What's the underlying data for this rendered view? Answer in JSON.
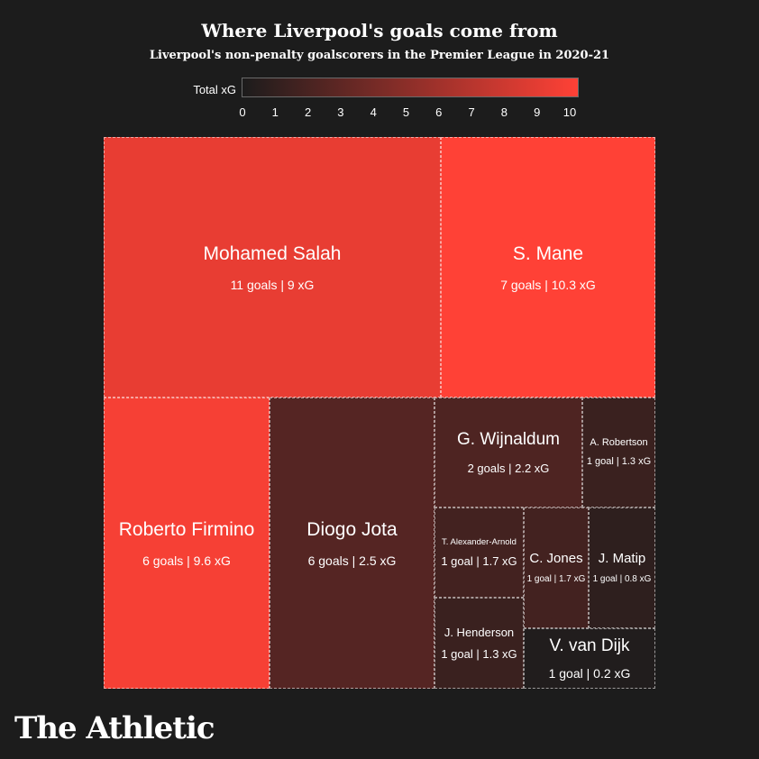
{
  "title": "Where Liverpool's goals come from",
  "subtitle": "Liverpool's non-penalty goalscorers in the Premier League in 2020-21",
  "legend": {
    "label": "Total xG",
    "ticks": [
      "0",
      "1",
      "2",
      "3",
      "4",
      "5",
      "6",
      "7",
      "8",
      "9",
      "10"
    ],
    "color_low": "#1c1c1c",
    "color_high": "#ff4136"
  },
  "chart_data": {
    "type": "treemap",
    "size_metric": "goals",
    "color_metric": "xG",
    "color_range": [
      0,
      10
    ],
    "items": [
      {
        "name": "Mohamed Salah",
        "stat": "11 goals | 9 xG",
        "goals": 11,
        "xG": 9
      },
      {
        "name": "S. Mane",
        "stat": "7 goals | 10.3 xG",
        "goals": 7,
        "xG": 10.3
      },
      {
        "name": "Roberto Firmino",
        "stat": "6 goals | 9.6 xG",
        "goals": 6,
        "xG": 9.6
      },
      {
        "name": "Diogo Jota",
        "stat": "6 goals | 2.5 xG",
        "goals": 6,
        "xG": 2.5
      },
      {
        "name": "G. Wijnaldum",
        "stat": "2 goals | 2.2 xG",
        "goals": 2,
        "xG": 2.2
      },
      {
        "name": "A. Robertson",
        "stat": "1 goal | 1.3 xG",
        "goals": 1,
        "xG": 1.3
      },
      {
        "name": "T. Alexander-Arnold",
        "stat": "1 goal | 1.7 xG",
        "goals": 1,
        "xG": 1.7
      },
      {
        "name": "C. Jones",
        "stat": "1 goal | 1.7 xG",
        "goals": 1,
        "xG": 1.7
      },
      {
        "name": "J. Matip",
        "stat": "1 goal | 0.8 xG",
        "goals": 1,
        "xG": 0.8
      },
      {
        "name": "J. Henderson",
        "stat": "1 goal | 1.3 xG",
        "goals": 1,
        "xG": 1.3
      },
      {
        "name": "V. van Dijk",
        "stat": "1 goal | 0.2 xG",
        "goals": 1,
        "xG": 0.2
      }
    ]
  },
  "brand": "The Athletic"
}
